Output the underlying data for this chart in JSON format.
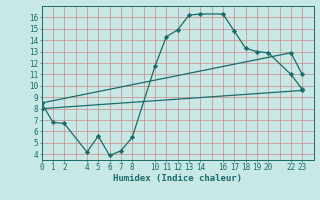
{
  "xlabel": "Humidex (Indice chaleur)",
  "bg_color": "#c8e8e5",
  "grid_color": "#cc8888",
  "line_color": "#1a6b6b",
  "spine_color": "#1a6b6b",
  "xlim": [
    0,
    24
  ],
  "ylim": [
    3.5,
    17
  ],
  "xticks": [
    0,
    1,
    2,
    4,
    5,
    6,
    7,
    8,
    10,
    11,
    12,
    13,
    14,
    16,
    17,
    18,
    19,
    20,
    22,
    23
  ],
  "xgrid": [
    0,
    1,
    2,
    3,
    4,
    5,
    6,
    7,
    8,
    9,
    10,
    11,
    12,
    13,
    14,
    15,
    16,
    17,
    18,
    19,
    20,
    21,
    22,
    23,
    24
  ],
  "yticks": [
    4,
    5,
    6,
    7,
    8,
    9,
    10,
    11,
    12,
    13,
    14,
    15,
    16
  ],
  "line1_x": [
    0,
    1,
    2,
    4,
    5,
    6,
    7,
    8,
    10,
    11,
    12,
    13,
    14,
    16,
    17,
    18,
    19,
    20,
    22,
    23
  ],
  "line1_y": [
    8.5,
    6.8,
    6.7,
    4.2,
    5.6,
    3.9,
    4.3,
    5.5,
    11.7,
    14.3,
    14.9,
    16.2,
    16.3,
    16.3,
    14.8,
    13.3,
    13.0,
    12.9,
    11.0,
    9.7
  ],
  "line2_x": [
    0,
    23
  ],
  "line2_y": [
    8.0,
    9.6
  ],
  "line3_x": [
    0,
    22,
    23
  ],
  "line3_y": [
    8.5,
    12.9,
    11.0
  ],
  "tick_fontsize": 5.5,
  "xlabel_fontsize": 6.5
}
